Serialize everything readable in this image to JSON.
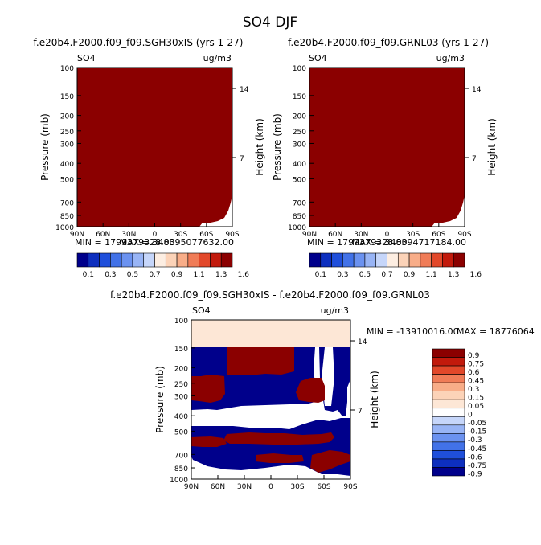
{
  "figure": {
    "title": "SO4 DJF"
  },
  "colors": {
    "dark_red": "#8b0000",
    "cream": "#fde7d6",
    "navy": "#00008b",
    "white": "#ffffff"
  },
  "chart_data": [
    {
      "type": "heatmap",
      "title": "f.e20b4.F2000.f09_f09.SGH30xIS (yrs 1-27)",
      "corner_left": "SO4",
      "corner_right": "ug/m3",
      "ylabel": "Pressure (mb)",
      "ylabel_right": "Height (km)",
      "x_ticks": [
        "90N",
        "60N",
        "30N",
        "0",
        "30S",
        "60S",
        "90S"
      ],
      "y_ticks": [
        100,
        150,
        200,
        250,
        300,
        400,
        500,
        700,
        850,
        1000
      ],
      "y_right_ticks": [
        14,
        7
      ],
      "ylim": [
        1000,
        100
      ],
      "y_scale": "log",
      "min_label": "MIN = 1799379328.00",
      "max_label": "MAX = 348395077632.00",
      "fill": "dark_red",
      "colorbar": {
        "labels": [
          "0.1",
          "0.3",
          "0.5",
          "0.7",
          "0.9",
          "1.1",
          "1.3",
          "1.6"
        ],
        "colors": [
          "#00008b",
          "#0d2fbf",
          "#1f4fdb",
          "#4272e8",
          "#6b92f0",
          "#98b4f5",
          "#c6d6fa",
          "#fdeee2",
          "#fcd3b8",
          "#f8ad88",
          "#f07c57",
          "#e2482a",
          "#c21a0c",
          "#8b0000"
        ]
      }
    },
    {
      "type": "heatmap",
      "title": "f.e20b4.F2000.f09_f09.GRNL03 (yrs 1-27)",
      "corner_left": "SO4",
      "corner_right": "ug/m3",
      "ylabel": "Pressure (mb)",
      "ylabel_right": "Height (km)",
      "x_ticks": [
        "90N",
        "60N",
        "30N",
        "0",
        "30S",
        "60S",
        "90S"
      ],
      "y_ticks": [
        100,
        150,
        200,
        250,
        300,
        400,
        500,
        700,
        850,
        1000
      ],
      "y_right_ticks": [
        14,
        7
      ],
      "ylim": [
        1000,
        100
      ],
      "y_scale": "log",
      "min_label": "MIN = 1799379328.00",
      "max_label": "MAX = 348394717184.00",
      "fill": "dark_red",
      "colorbar": {
        "labels": [
          "0.1",
          "0.3",
          "0.5",
          "0.7",
          "0.9",
          "1.1",
          "1.3",
          "1.6"
        ],
        "colors": [
          "#00008b",
          "#0d2fbf",
          "#1f4fdb",
          "#4272e8",
          "#6b92f0",
          "#98b4f5",
          "#c6d6fa",
          "#fdeee2",
          "#fcd3b8",
          "#f8ad88",
          "#f07c57",
          "#e2482a",
          "#c21a0c",
          "#8b0000"
        ]
      }
    },
    {
      "type": "heatmap",
      "title": "f.e20b4.F2000.f09_f09.SGH30xIS - f.e20b4.F2000.f09_f09.GRNL03",
      "corner_left": "SO4",
      "corner_right": "ug/m3",
      "ylabel": "Pressure (mb)",
      "ylabel_right": "Height (km)",
      "x_ticks": [
        "90N",
        "60N",
        "30N",
        "0",
        "30S",
        "60S",
        "90S"
      ],
      "y_ticks": [
        100,
        150,
        200,
        250,
        300,
        400,
        500,
        700,
        850,
        1000
      ],
      "y_right_ticks": [
        14,
        7
      ],
      "ylim": [
        1000,
        100
      ],
      "y_scale": "log",
      "min_label": "MIN = -13910016.00",
      "max_label": "MAX = 18776064",
      "colorbar": {
        "labels": [
          "0.9",
          "0.75",
          "0.6",
          "0.45",
          "0.3",
          "0.15",
          "0.05",
          "0",
          "-0.05",
          "-0.15",
          "-0.3",
          "-0.45",
          "-0.6",
          "-0.75",
          "-0.9"
        ],
        "colors": [
          "#8b0000",
          "#c21a0c",
          "#e2482a",
          "#f07c57",
          "#f8ad88",
          "#fcd3b8",
          "#fde7d6",
          "#ffffff",
          "#c6d6fa",
          "#98b4f5",
          "#6b92f0",
          "#4272e8",
          "#1f4fdb",
          "#0d2fbf",
          "#00008b"
        ]
      }
    }
  ]
}
